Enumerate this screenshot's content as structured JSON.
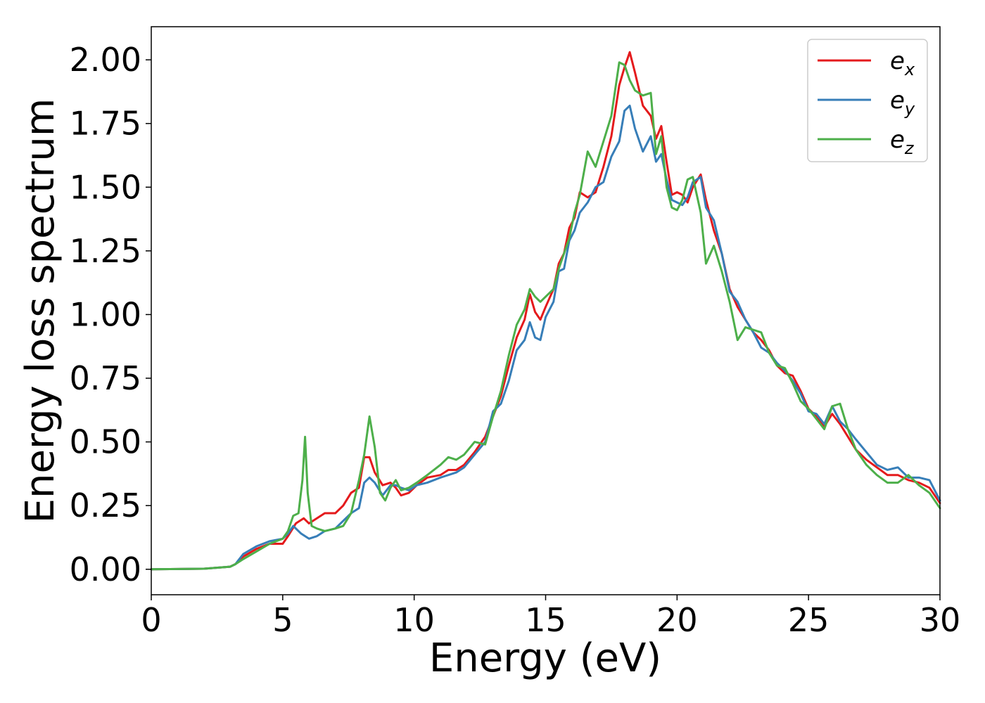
{
  "chart_data": {
    "type": "line",
    "xlabel": "Energy (eV)",
    "ylabel": "Energy loss spectrum",
    "xlim": [
      0,
      30
    ],
    "ylim": [
      -0.1,
      2.13
    ],
    "xticks": [
      0,
      5,
      10,
      15,
      20,
      25,
      30
    ],
    "yticks": [
      0.0,
      0.25,
      0.5,
      0.75,
      1.0,
      1.25,
      1.5,
      1.75,
      2.0
    ],
    "xtick_labels": [
      "0",
      "5",
      "10",
      "15",
      "20",
      "25",
      "30"
    ],
    "ytick_labels": [
      "0.00",
      "0.25",
      "0.50",
      "0.75",
      "1.00",
      "1.25",
      "1.50",
      "1.75",
      "2.00"
    ],
    "grid": false,
    "legend_position": "top-right",
    "series": [
      {
        "name": "e_x",
        "label_base": "e",
        "label_sub": "x",
        "color": "#e41a1c",
        "x": [
          0,
          2,
          3,
          3.2,
          3.5,
          4,
          4.5,
          5,
          5.2,
          5.5,
          5.8,
          6.0,
          6.3,
          6.6,
          7.0,
          7.3,
          7.6,
          7.9,
          8.1,
          8.3,
          8.5,
          8.8,
          9.1,
          9.3,
          9.5,
          9.8,
          10.1,
          10.5,
          11,
          11.3,
          11.6,
          11.9,
          12.3,
          12.7,
          13.0,
          13.3,
          13.6,
          13.9,
          14.2,
          14.4,
          14.6,
          14.8,
          15.0,
          15.3,
          15.5,
          15.7,
          15.9,
          16.1,
          16.3,
          16.6,
          16.9,
          17.2,
          17.5,
          17.8,
          18.0,
          18.2,
          18.4,
          18.7,
          19.0,
          19.2,
          19.4,
          19.6,
          19.8,
          20.0,
          20.2,
          20.4,
          20.6,
          20.9,
          21.1,
          21.4,
          21.7,
          22.0,
          22.3,
          22.6,
          22.9,
          23.2,
          23.5,
          23.8,
          24.1,
          24.4,
          24.7,
          25.0,
          25.3,
          25.6,
          25.9,
          26.2,
          26.5,
          26.8,
          27.2,
          27.6,
          28.0,
          28.4,
          28.8,
          29.2,
          29.6,
          30.0
        ],
        "values": [
          0.0,
          0.002,
          0.01,
          0.02,
          0.05,
          0.08,
          0.1,
          0.1,
          0.13,
          0.18,
          0.2,
          0.18,
          0.2,
          0.22,
          0.22,
          0.25,
          0.3,
          0.32,
          0.44,
          0.44,
          0.38,
          0.33,
          0.34,
          0.32,
          0.29,
          0.3,
          0.33,
          0.36,
          0.37,
          0.39,
          0.39,
          0.41,
          0.46,
          0.52,
          0.6,
          0.68,
          0.8,
          0.91,
          0.98,
          1.08,
          1.01,
          0.98,
          1.03,
          1.1,
          1.2,
          1.24,
          1.34,
          1.38,
          1.48,
          1.46,
          1.48,
          1.58,
          1.7,
          1.9,
          1.97,
          2.03,
          1.95,
          1.82,
          1.78,
          1.69,
          1.74,
          1.6,
          1.47,
          1.48,
          1.47,
          1.44,
          1.5,
          1.55,
          1.45,
          1.33,
          1.24,
          1.1,
          1.03,
          0.98,
          0.93,
          0.9,
          0.86,
          0.8,
          0.77,
          0.76,
          0.7,
          0.63,
          0.6,
          0.56,
          0.61,
          0.57,
          0.52,
          0.47,
          0.43,
          0.4,
          0.37,
          0.37,
          0.35,
          0.34,
          0.32,
          0.26
        ]
      },
      {
        "name": "e_y",
        "label_base": "e",
        "label_sub": "y",
        "color": "#377eb8",
        "x": [
          0,
          2,
          3,
          3.2,
          3.5,
          4,
          4.5,
          5,
          5.2,
          5.4,
          5.7,
          6.0,
          6.3,
          6.6,
          7.0,
          7.3,
          7.6,
          7.9,
          8.1,
          8.3,
          8.5,
          8.8,
          9.1,
          9.3,
          9.5,
          9.8,
          10.1,
          10.5,
          11,
          11.3,
          11.6,
          11.9,
          12.3,
          12.7,
          13.0,
          13.3,
          13.6,
          13.9,
          14.2,
          14.4,
          14.6,
          14.8,
          15.0,
          15.3,
          15.5,
          15.7,
          15.9,
          16.1,
          16.3,
          16.6,
          16.9,
          17.2,
          17.5,
          17.8,
          18.0,
          18.2,
          18.4,
          18.7,
          19.0,
          19.2,
          19.4,
          19.6,
          19.8,
          20.0,
          20.2,
          20.4,
          20.6,
          20.9,
          21.1,
          21.4,
          21.7,
          22.0,
          22.3,
          22.6,
          22.9,
          23.2,
          23.5,
          23.8,
          24.1,
          24.4,
          24.7,
          25.0,
          25.3,
          25.6,
          25.9,
          26.2,
          26.5,
          26.8,
          27.2,
          27.6,
          28.0,
          28.4,
          28.8,
          29.2,
          29.6,
          30.0
        ],
        "values": [
          0.0,
          0.002,
          0.01,
          0.02,
          0.06,
          0.09,
          0.11,
          0.12,
          0.14,
          0.17,
          0.14,
          0.12,
          0.13,
          0.15,
          0.16,
          0.19,
          0.22,
          0.24,
          0.34,
          0.36,
          0.34,
          0.29,
          0.33,
          0.33,
          0.32,
          0.31,
          0.33,
          0.34,
          0.36,
          0.37,
          0.38,
          0.4,
          0.45,
          0.5,
          0.62,
          0.65,
          0.74,
          0.86,
          0.9,
          0.97,
          0.91,
          0.9,
          0.99,
          1.05,
          1.17,
          1.18,
          1.29,
          1.33,
          1.4,
          1.44,
          1.5,
          1.52,
          1.62,
          1.68,
          1.8,
          1.82,
          1.73,
          1.64,
          1.7,
          1.6,
          1.63,
          1.53,
          1.45,
          1.44,
          1.43,
          1.46,
          1.52,
          1.54,
          1.42,
          1.37,
          1.24,
          1.09,
          1.05,
          0.98,
          0.93,
          0.87,
          0.85,
          0.81,
          0.78,
          0.74,
          0.69,
          0.62,
          0.61,
          0.57,
          0.64,
          0.58,
          0.55,
          0.51,
          0.46,
          0.41,
          0.39,
          0.4,
          0.36,
          0.36,
          0.35,
          0.27
        ]
      },
      {
        "name": "e_z",
        "label_base": "e",
        "label_sub": "z",
        "color": "#4daf4a",
        "x": [
          0,
          2,
          3,
          3.2,
          3.5,
          4,
          4.5,
          5,
          5.2,
          5.4,
          5.6,
          5.75,
          5.85,
          5.95,
          6.1,
          6.3,
          6.6,
          7.0,
          7.3,
          7.6,
          7.9,
          8.1,
          8.3,
          8.5,
          8.7,
          8.9,
          9.1,
          9.3,
          9.5,
          9.8,
          10.1,
          10.5,
          11,
          11.3,
          11.6,
          11.9,
          12.3,
          12.7,
          13.0,
          13.3,
          13.6,
          13.9,
          14.2,
          14.4,
          14.6,
          14.8,
          15.0,
          15.3,
          15.5,
          15.7,
          15.9,
          16.1,
          16.3,
          16.6,
          16.9,
          17.2,
          17.5,
          17.8,
          18.0,
          18.2,
          18.4,
          18.7,
          19.0,
          19.2,
          19.4,
          19.6,
          19.8,
          20.0,
          20.2,
          20.4,
          20.6,
          20.9,
          21.1,
          21.4,
          21.7,
          22.0,
          22.3,
          22.6,
          22.9,
          23.2,
          23.5,
          23.8,
          24.1,
          24.4,
          24.7,
          25.0,
          25.3,
          25.6,
          25.9,
          26.2,
          26.5,
          26.8,
          27.2,
          27.6,
          28.0,
          28.4,
          28.8,
          29.2,
          29.6,
          30.0
        ],
        "values": [
          0.0,
          0.002,
          0.01,
          0.02,
          0.04,
          0.07,
          0.1,
          0.12,
          0.15,
          0.21,
          0.22,
          0.35,
          0.52,
          0.3,
          0.17,
          0.16,
          0.15,
          0.16,
          0.17,
          0.22,
          0.35,
          0.45,
          0.6,
          0.48,
          0.3,
          0.27,
          0.32,
          0.35,
          0.31,
          0.32,
          0.34,
          0.37,
          0.41,
          0.44,
          0.43,
          0.45,
          0.5,
          0.49,
          0.6,
          0.7,
          0.84,
          0.96,
          1.02,
          1.1,
          1.07,
          1.05,
          1.07,
          1.1,
          1.18,
          1.24,
          1.3,
          1.4,
          1.47,
          1.64,
          1.58,
          1.68,
          1.78,
          1.99,
          1.98,
          1.92,
          1.88,
          1.86,
          1.87,
          1.63,
          1.7,
          1.5,
          1.42,
          1.41,
          1.45,
          1.53,
          1.54,
          1.4,
          1.2,
          1.27,
          1.17,
          1.05,
          0.9,
          0.95,
          0.94,
          0.93,
          0.85,
          0.8,
          0.79,
          0.73,
          0.66,
          0.63,
          0.59,
          0.55,
          0.64,
          0.65,
          0.55,
          0.47,
          0.41,
          0.37,
          0.34,
          0.34,
          0.37,
          0.33,
          0.3,
          0.24
        ]
      }
    ]
  }
}
